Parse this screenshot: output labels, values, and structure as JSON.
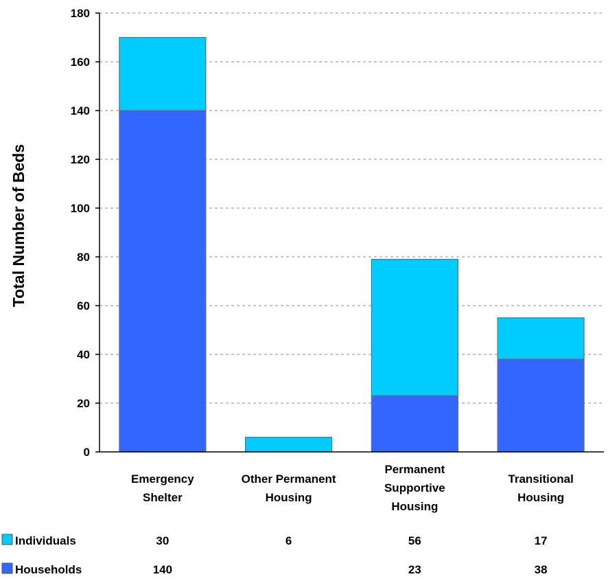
{
  "chart_data": {
    "type": "bar",
    "stacked": true,
    "title": "",
    "xlabel": "",
    "ylabel": "Total Number of Beds",
    "ylim": [
      0,
      180
    ],
    "yticks": [
      0,
      20,
      40,
      60,
      80,
      100,
      120,
      140,
      160,
      180
    ],
    "grid": true,
    "legend": "bottom-left data table",
    "categories": [
      [
        "Emergency",
        "Shelter"
      ],
      [
        "Other Permanent",
        "Housing"
      ],
      [
        "Permanent",
        "Supportive",
        "Housing"
      ],
      [
        "Transitional",
        "Housing"
      ]
    ],
    "series": [
      {
        "name": "Households",
        "color": "#3366FF",
        "values": [
          140,
          null,
          23,
          38
        ],
        "labels": [
          "140",
          "",
          "23",
          "38"
        ]
      },
      {
        "name": "Individuals",
        "color": "#00CCFF",
        "values": [
          30,
          6,
          56,
          17
        ],
        "labels": [
          "30",
          "6",
          "56",
          "17"
        ]
      }
    ]
  }
}
